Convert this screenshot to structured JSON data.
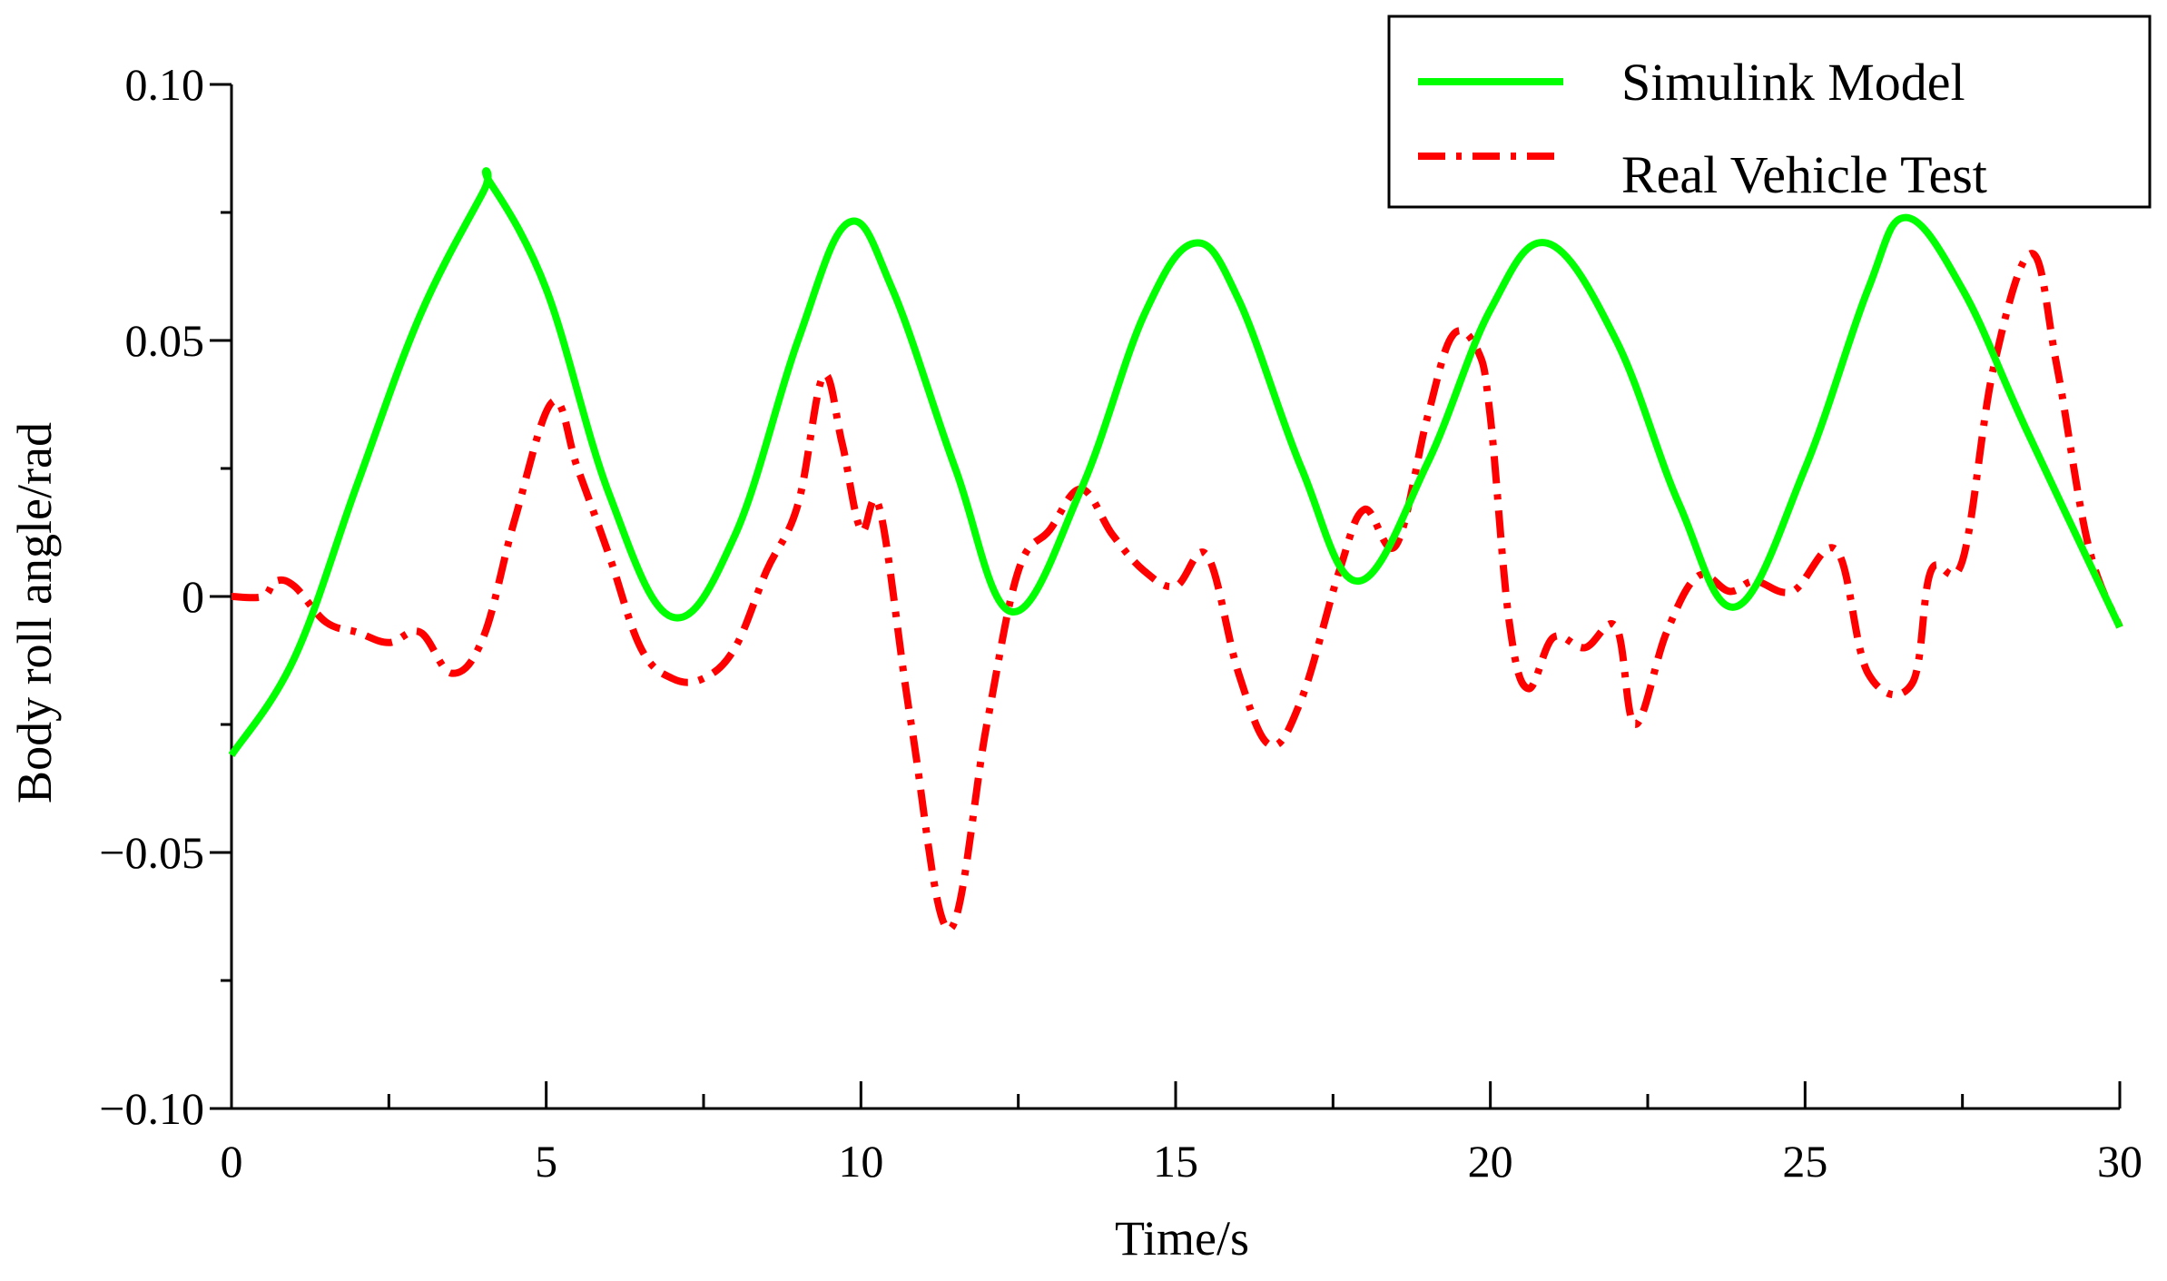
{
  "chart_data": {
    "type": "line",
    "title": "",
    "xlabel": "Time/s",
    "ylabel": "Body roll angle/rad",
    "xlim": [
      0,
      30
    ],
    "ylim": [
      -0.1,
      0.1
    ],
    "xticks": [
      0,
      5,
      10,
      15,
      20,
      25,
      30
    ],
    "xtick_labels": [
      "0",
      "5",
      "10",
      "15",
      "20",
      "25",
      "30"
    ],
    "yticks": [
      -0.1,
      -0.05,
      0,
      0.05,
      0.1
    ],
    "ytick_labels": [
      "−0.10",
      "−0.05",
      "0",
      "0.05",
      "0.10"
    ],
    "grid": false,
    "legend_position": "top-right",
    "series": [
      {
        "name": "Simulink Model",
        "color": "#00ff00",
        "line_style": "solid",
        "x": [
          0,
          1,
          2,
          3,
          4,
          4.1,
          5,
          6,
          7,
          8,
          9,
          9.8,
          10.5,
          11.5,
          12.4,
          13.5,
          14.5,
          15.3,
          16,
          17,
          17.9,
          19,
          20,
          20.9,
          22,
          23,
          23.9,
          25,
          26,
          26.6,
          27.5,
          28.5,
          30
        ],
        "y": [
          -0.031,
          -0.012,
          0.022,
          0.055,
          0.079,
          0.081,
          0.06,
          0.02,
          -0.004,
          0.012,
          0.05,
          0.073,
          0.06,
          0.025,
          -0.003,
          0.021,
          0.055,
          0.069,
          0.058,
          0.025,
          0.003,
          0.026,
          0.056,
          0.069,
          0.05,
          0.018,
          -0.002,
          0.025,
          0.06,
          0.074,
          0.06,
          0.033,
          -0.006
        ]
      },
      {
        "name": "Real Vehicle Test",
        "color": "#ff0000",
        "line_style": "dashdot",
        "x": [
          0,
          0.5,
          0.7,
          1,
          1.5,
          2,
          2.5,
          3,
          3.5,
          4,
          4.5,
          5.1,
          5.5,
          6,
          6.5,
          7,
          7.5,
          8,
          8.5,
          9,
          9.4,
          9.7,
          10,
          10.3,
          10.8,
          11.4,
          12,
          12.5,
          13,
          13.5,
          14,
          14.5,
          15,
          15.5,
          16,
          16.5,
          17,
          17.6,
          18,
          18.5,
          19,
          19.4,
          19.8,
          20,
          20.3,
          20.6,
          21,
          21.5,
          22,
          22.3,
          22.8,
          23.3,
          23.8,
          24.2,
          24.8,
          25.5,
          26,
          26.7,
          27,
          27.5,
          28,
          28.6,
          29,
          29.5,
          30
        ],
        "y": [
          0,
          0,
          0.003,
          0.002,
          -0.005,
          -0.007,
          -0.009,
          -0.007,
          -0.015,
          -0.008,
          0.015,
          0.038,
          0.025,
          0.008,
          -0.01,
          -0.016,
          -0.016,
          -0.01,
          0.005,
          0.018,
          0.043,
          0.03,
          0.013,
          0.017,
          -0.025,
          -0.065,
          -0.025,
          0.005,
          0.013,
          0.021,
          0.012,
          0.005,
          0.002,
          0.008,
          -0.015,
          -0.029,
          -0.02,
          0.005,
          0.017,
          0.01,
          0.035,
          0.051,
          0.048,
          0.035,
          -0.005,
          -0.018,
          -0.008,
          -0.01,
          -0.006,
          -0.025,
          -0.007,
          0.004,
          0.001,
          0.003,
          0.001,
          0.009,
          -0.015,
          -0.017,
          0.005,
          0.007,
          0.045,
          0.067,
          0.045,
          0.01,
          -0.006
        ]
      }
    ]
  }
}
